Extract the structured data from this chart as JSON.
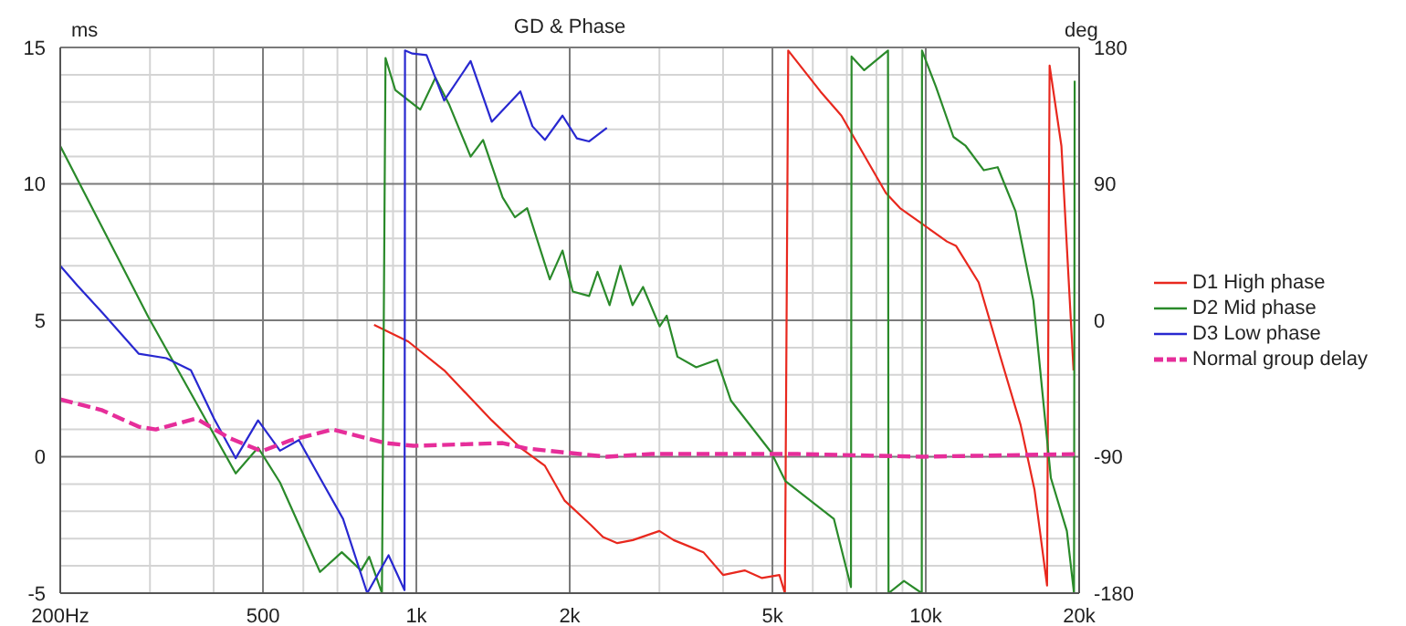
{
  "chart_data": {
    "type": "line",
    "title": "GD & Phase",
    "ylabel": "ms",
    "y2label": "deg",
    "log": "x",
    "grid": true,
    "legend": "right",
    "xlim": [
      200,
      20000
    ],
    "xticks": [
      {
        "value": 200,
        "label": "200Hz"
      },
      {
        "value": 300,
        "label": null
      },
      {
        "value": 400,
        "label": null
      },
      500,
      {
        "value": 600,
        "label": null
      },
      {
        "value": 700,
        "label": null
      },
      {
        "value": 800,
        "label": null
      },
      {
        "value": 900,
        "label": null
      },
      {
        "value": 1000,
        "label": "1k"
      },
      {
        "value": 2000,
        "label": "2k"
      },
      {
        "value": 3000,
        "label": null
      },
      {
        "value": 4000,
        "label": null
      },
      {
        "value": 5000,
        "label": "5k"
      },
      {
        "value": 6000,
        "label": null
      },
      {
        "value": 7000,
        "label": null
      },
      {
        "value": 8000,
        "label": null
      },
      {
        "value": 9000,
        "label": null
      },
      {
        "value": 10000,
        "label": "10k"
      },
      {
        "value": 20000,
        "label": "20k"
      }
    ],
    "ylim": [
      -5,
      15
    ],
    "yticks": [
      -5,
      {
        "value": -4,
        "label": null
      },
      {
        "value": -3,
        "label": null
      },
      {
        "value": -2,
        "label": null
      },
      {
        "value": -1,
        "label": null
      },
      0,
      {
        "value": 1,
        "label": null
      },
      {
        "value": 2,
        "label": null
      },
      {
        "value": 3,
        "label": null
      },
      {
        "value": 4,
        "label": null
      },
      5,
      {
        "value": 6,
        "label": null
      },
      {
        "value": 7,
        "label": null
      },
      {
        "value": 8,
        "label": null
      },
      {
        "value": 9,
        "label": null
      },
      10,
      {
        "value": 11,
        "label": null
      },
      {
        "value": 12,
        "label": null
      },
      {
        "value": 13,
        "label": null
      },
      {
        "value": 14,
        "label": null
      },
      15
    ],
    "y2lim": [
      -180,
      180
    ],
    "y2ticks": [
      -180,
      -90,
      0,
      90,
      180
    ],
    "series": [
      {
        "name": "D1 High phase",
        "color": "#e8281e",
        "axis": "y2",
        "line_style": "solid",
        "x": [
          826,
          964,
          1134,
          1406,
          1600,
          1788,
          1955,
          2200,
          2325,
          2480,
          2660,
          3000,
          3200,
          3660,
          4000,
          4410,
          4770,
          5160,
          5290,
          5370,
          6210,
          6830,
          8350,
          8900,
          9800,
          11000,
          11470,
          12700,
          13950,
          15350,
          16350,
          17300,
          17500,
          18460,
          19500
        ],
        "values": [
          -3,
          -14,
          -33,
          -66,
          -84,
          -96,
          -119,
          -135,
          -143,
          -147,
          -145,
          -139,
          -145,
          -153,
          -168,
          -165,
          -170,
          -168,
          -180,
          178,
          151,
          135,
          84,
          74,
          64,
          52,
          49,
          25,
          -22,
          -69,
          -112,
          -175,
          168,
          115,
          -33
        ]
      },
      {
        "name": "D2 Mid phase",
        "color": "#2a8a2a",
        "axis": "y2",
        "line_style": "solid",
        "x": [
          200,
          298,
          442,
          489,
          540,
          647,
          714,
          779,
          808,
          856,
          870,
          909,
          1018,
          1090,
          1161,
          1278,
          1352,
          1477,
          1561,
          1650,
          1828,
          1936,
          2028,
          2184,
          2268,
          2395,
          2515,
          2657,
          2786,
          3003,
          3100,
          3255,
          3543,
          3892,
          4145,
          4970,
          5300,
          6600,
          7130,
          7150,
          7570,
          8430,
          8450,
          9060,
          9820,
          9830,
          10470,
          11330,
          11980,
          13000,
          13840,
          15000,
          16260,
          17600,
          18920,
          19540,
          19600
        ],
        "values": [
          115,
          2,
          -101,
          -84,
          -107,
          -166,
          -153,
          -165,
          -156,
          -180,
          173,
          152,
          139,
          160,
          142,
          108,
          119,
          81,
          68,
          74,
          27,
          46,
          19,
          16,
          32,
          10,
          36,
          10,
          22,
          -4,
          3,
          -24,
          -31,
          -26,
          -53,
          -87,
          -106,
          -131,
          -176,
          174,
          165,
          178,
          -180,
          -172,
          -180,
          178,
          154,
          121,
          115,
          99,
          101,
          72,
          13,
          -104,
          -139,
          -180,
          158
        ]
      },
      {
        "name": "D3 Low phase",
        "color": "#2828d0",
        "axis": "y2",
        "line_style": "solid",
        "x": [
          200,
          216,
          242,
          285,
          323,
          361,
          401,
          442,
          489,
          540,
          588,
          647,
          718,
          801,
          882,
          948,
          950,
          982,
          1047,
          1134,
          1278,
          1406,
          1600,
          1690,
          1788,
          1936,
          2066,
          2184,
          2366
        ],
        "values": [
          36,
          23,
          5,
          -22,
          -25,
          -33,
          -65,
          -91,
          -66,
          -86,
          -79,
          -104,
          -131,
          -180,
          -155,
          -178,
          178,
          176,
          175,
          145,
          171,
          131,
          151,
          128,
          119,
          135,
          120,
          118,
          127
        ]
      },
      {
        "name": "Normal group delay",
        "color": "#e62e9a",
        "axis": "y",
        "line_style": "dashed",
        "x": [
          200,
          242,
          285,
          308,
          370,
          428,
          497,
          566,
          684,
          870,
          987,
          1477,
          1650,
          2092,
          2367,
          2896,
          5610,
          9820,
          20000
        ],
        "values": [
          2.1,
          1.7,
          1.1,
          1.0,
          1.4,
          0.7,
          0.2,
          0.6,
          1.0,
          0.5,
          0.4,
          0.5,
          0.3,
          0.1,
          0,
          0.1,
          0.1,
          0,
          0.1
        ]
      }
    ]
  }
}
